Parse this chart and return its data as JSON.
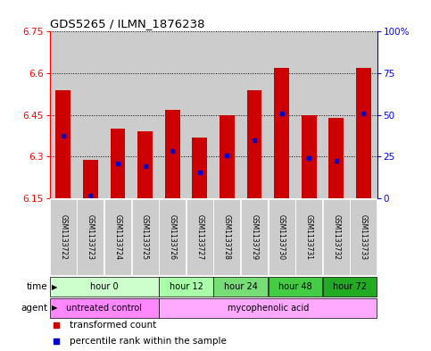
{
  "title": "GDS5265 / ILMN_1876238",
  "samples": [
    "GSM1133722",
    "GSM1133723",
    "GSM1133724",
    "GSM1133725",
    "GSM1133726",
    "GSM1133727",
    "GSM1133728",
    "GSM1133729",
    "GSM1133730",
    "GSM1133731",
    "GSM1133732",
    "GSM1133733"
  ],
  "bar_bottom": 6.15,
  "bar_top": [
    6.54,
    6.29,
    6.4,
    6.39,
    6.47,
    6.37,
    6.45,
    6.54,
    6.62,
    6.45,
    6.44,
    6.62
  ],
  "blue_dot_y": [
    6.375,
    6.16,
    6.275,
    6.265,
    6.32,
    6.245,
    6.305,
    6.36,
    6.455,
    6.295,
    6.285,
    6.455
  ],
  "ylim_left": [
    6.15,
    6.75
  ],
  "ylim_right": [
    0,
    100
  ],
  "yticks_left": [
    6.15,
    6.3,
    6.45,
    6.6,
    6.75
  ],
  "yticks_right": [
    0,
    25,
    50,
    75,
    100
  ],
  "bar_color": "#cc0000",
  "blue_color": "#0000cc",
  "sample_bg_color": "#cccccc",
  "bg_color": "#ffffff",
  "bar_width": 0.55,
  "time_groups": [
    {
      "label": "hour 0",
      "indices": [
        0,
        1,
        2,
        3
      ],
      "color": "#ccffcc"
    },
    {
      "label": "hour 12",
      "indices": [
        4,
        5
      ],
      "color": "#aaffaa"
    },
    {
      "label": "hour 24",
      "indices": [
        6,
        7
      ],
      "color": "#77dd77"
    },
    {
      "label": "hour 48",
      "indices": [
        8,
        9
      ],
      "color": "#44cc44"
    },
    {
      "label": "hour 72",
      "indices": [
        10,
        11
      ],
      "color": "#22aa22"
    }
  ],
  "agent_groups": [
    {
      "label": "untreated control",
      "indices": [
        0,
        1,
        2,
        3
      ],
      "color": "#ff88ff"
    },
    {
      "label": "mycophenolic acid",
      "indices": [
        4,
        5,
        6,
        7,
        8,
        9,
        10,
        11
      ],
      "color": "#ffaaff"
    }
  ],
  "legend": [
    {
      "label": "transformed count",
      "color": "#cc0000"
    },
    {
      "label": "percentile rank within the sample",
      "color": "#0000cc"
    }
  ]
}
